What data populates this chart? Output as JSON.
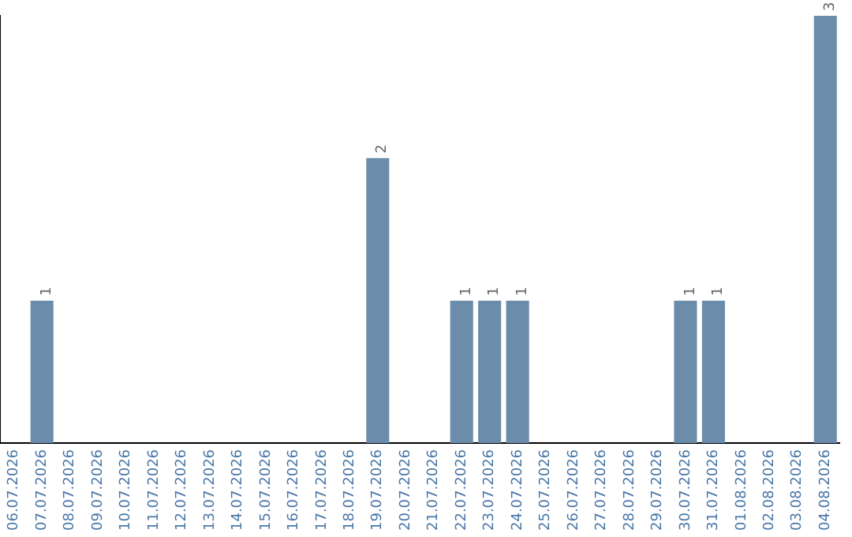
{
  "chart_data": {
    "type": "bar",
    "categories": [
      "06.07.2026",
      "07.07.2026",
      "08.07.2026",
      "09.07.2026",
      "10.07.2026",
      "11.07.2026",
      "12.07.2026",
      "13.07.2026",
      "14.07.2026",
      "15.07.2026",
      "16.07.2026",
      "17.07.2026",
      "18.07.2026",
      "19.07.2026",
      "20.07.2026",
      "21.07.2026",
      "22.07.2026",
      "23.07.2026",
      "24.07.2026",
      "25.07.2026",
      "26.07.2026",
      "27.07.2026",
      "28.07.2026",
      "29.07.2026",
      "30.07.2026",
      "31.07.2026",
      "01.08.2026",
      "02.08.2026",
      "03.08.2026",
      "04.08.2026"
    ],
    "values": [
      0,
      1,
      0,
      0,
      0,
      0,
      0,
      0,
      0,
      0,
      0,
      0,
      0,
      2,
      0,
      0,
      1,
      1,
      1,
      0,
      0,
      0,
      0,
      0,
      1,
      1,
      0,
      0,
      0,
      3
    ],
    "color": "#6b8cab",
    "value_labels": [
      null,
      "1",
      null,
      null,
      null,
      null,
      null,
      null,
      null,
      null,
      null,
      null,
      null,
      "2",
      null,
      null,
      "1",
      "1",
      "1",
      null,
      null,
      null,
      null,
      null,
      "1",
      "1",
      null,
      null,
      null,
      "3"
    ],
    "tick_labels": "x",
    "grid": false,
    "legend": false
  }
}
